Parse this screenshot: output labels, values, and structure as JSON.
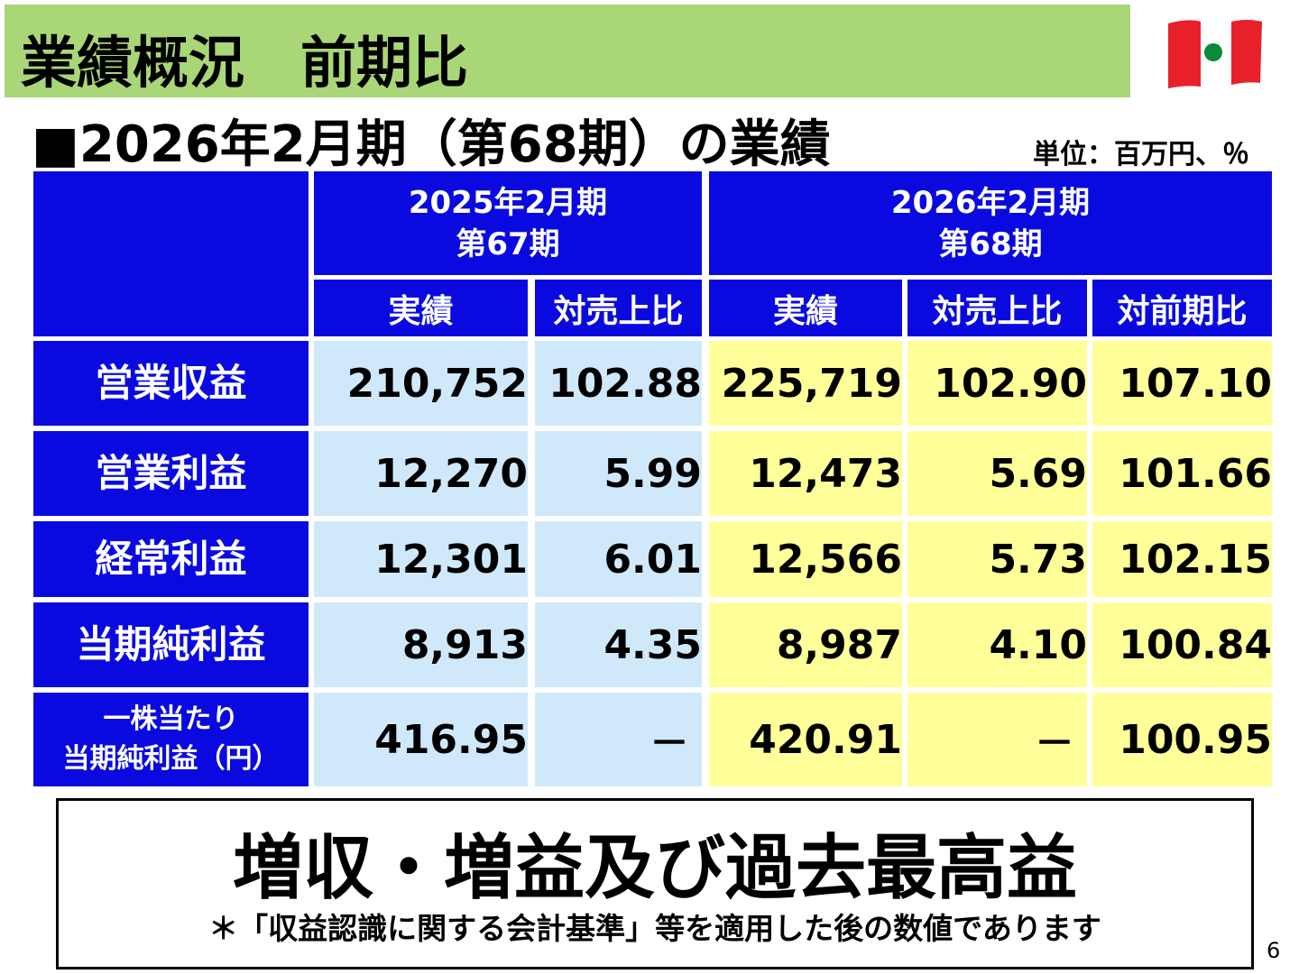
{
  "header": {
    "title": "業績概況　前期比"
  },
  "subtitle": "■2026年2月期（第68期）の業績",
  "unit": "単位：百万円、％",
  "table": {
    "periods": [
      {
        "label": "2025年2月期",
        "term": "第67期"
      },
      {
        "label": "2026年2月期",
        "term": "第68期"
      }
    ],
    "columns": [
      "実績",
      "対売上比",
      "実績",
      "対売上比",
      "対前期比"
    ],
    "rows": [
      {
        "label_lines": [
          "営業収益"
        ],
        "cells": [
          "210,752",
          "102.88",
          "225,719",
          "102.90",
          "107.10"
        ]
      },
      {
        "label_lines": [
          "営業利益"
        ],
        "cells": [
          "12,270",
          "5.99",
          "12,473",
          "5.69",
          "101.66"
        ]
      },
      {
        "label_lines": [
          "経常利益"
        ],
        "cells": [
          "12,301",
          "6.01",
          "12,566",
          "5.73",
          "102.15"
        ]
      },
      {
        "label_lines": [
          "当期純利益"
        ],
        "cells": [
          "8,913",
          "4.35",
          "8,987",
          "4.10",
          "100.84"
        ]
      },
      {
        "label_lines": [
          "一株当たり",
          "当期純利益（円）"
        ],
        "cells": [
          "416.95",
          "－",
          "420.91",
          "－",
          "100.95"
        ]
      }
    ]
  },
  "summary": {
    "headline": "増収・増益及び過去最高益",
    "note": "＊「収益認識に関する会計基準」等を適用した後の数値であります"
  },
  "page_number": "6"
}
